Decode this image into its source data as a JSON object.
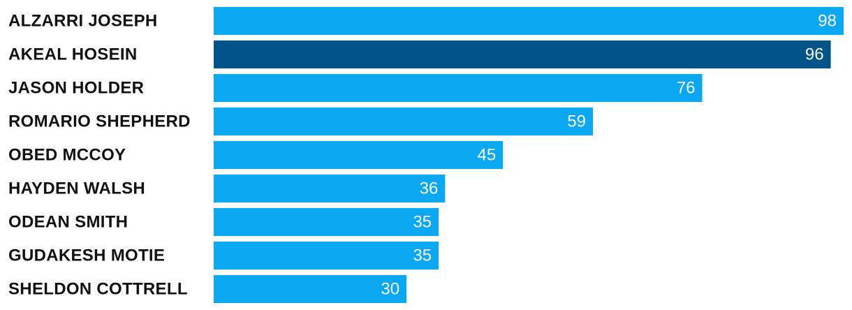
{
  "chart_data": {
    "type": "hbar",
    "categories": [
      "ALZARRI JOSEPH",
      "AKEAL HOSEIN",
      "JASON HOLDER",
      "ROMARIO SHEPHERD",
      "OBED MCCOY",
      "HAYDEN WALSH",
      "ODEAN SMITH",
      "GUDAKESH MOTIE",
      "SHELDON COTTRELL"
    ],
    "values": [
      98,
      96,
      76,
      59,
      45,
      36,
      35,
      35,
      30
    ],
    "colors": [
      "#0aa8f2",
      "#00548a",
      "#0aa8f2",
      "#0aa8f2",
      "#0aa8f2",
      "#0aa8f2",
      "#0aa8f2",
      "#0aa8f2",
      "#0aa8f2"
    ]
  }
}
